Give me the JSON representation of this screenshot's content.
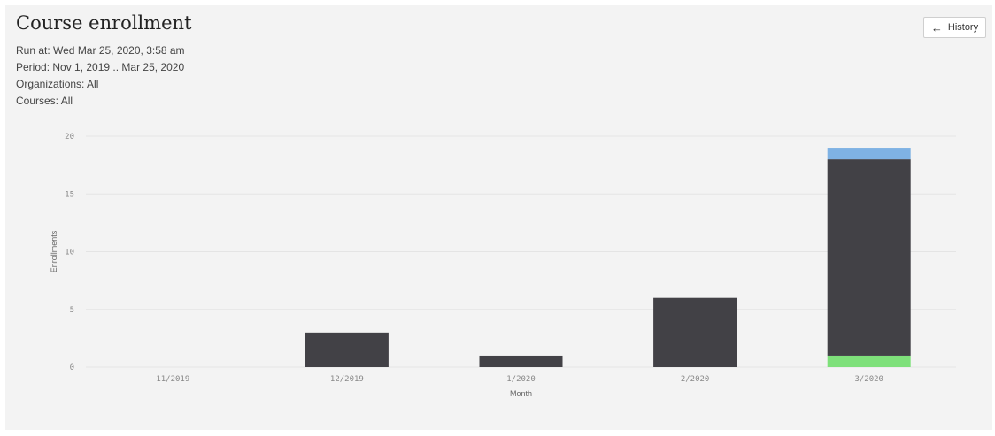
{
  "report": {
    "title": "Course enrollment",
    "run_at": "Run at: Wed Mar 25, 2020, 3:58 am",
    "period": "Period: Nov 1, 2019 .. Mar 25, 2020",
    "organizations": "Organizations: All",
    "courses": "Courses: All"
  },
  "toolbar": {
    "history_label": "History",
    "history_icon": "arrow-left-icon"
  },
  "chart_data": {
    "type": "bar",
    "stacked": true,
    "categories": [
      "11/2019",
      "12/2019",
      "1/2020",
      "2/2020",
      "3/2020"
    ],
    "series": [
      {
        "color": "#7ee07a",
        "values": [
          0,
          0,
          0,
          0,
          1
        ]
      },
      {
        "color": "#424146",
        "values": [
          0,
          3,
          1,
          6,
          17
        ]
      },
      {
        "color": "#7fb2e4",
        "values": [
          0,
          0,
          0,
          0,
          1
        ]
      }
    ],
    "xlabel": "Month",
    "ylabel": "Enrollments",
    "ylim": [
      0,
      20
    ],
    "yticks": [
      0,
      5,
      10,
      15,
      20
    ],
    "grid": true,
    "legend": false
  }
}
